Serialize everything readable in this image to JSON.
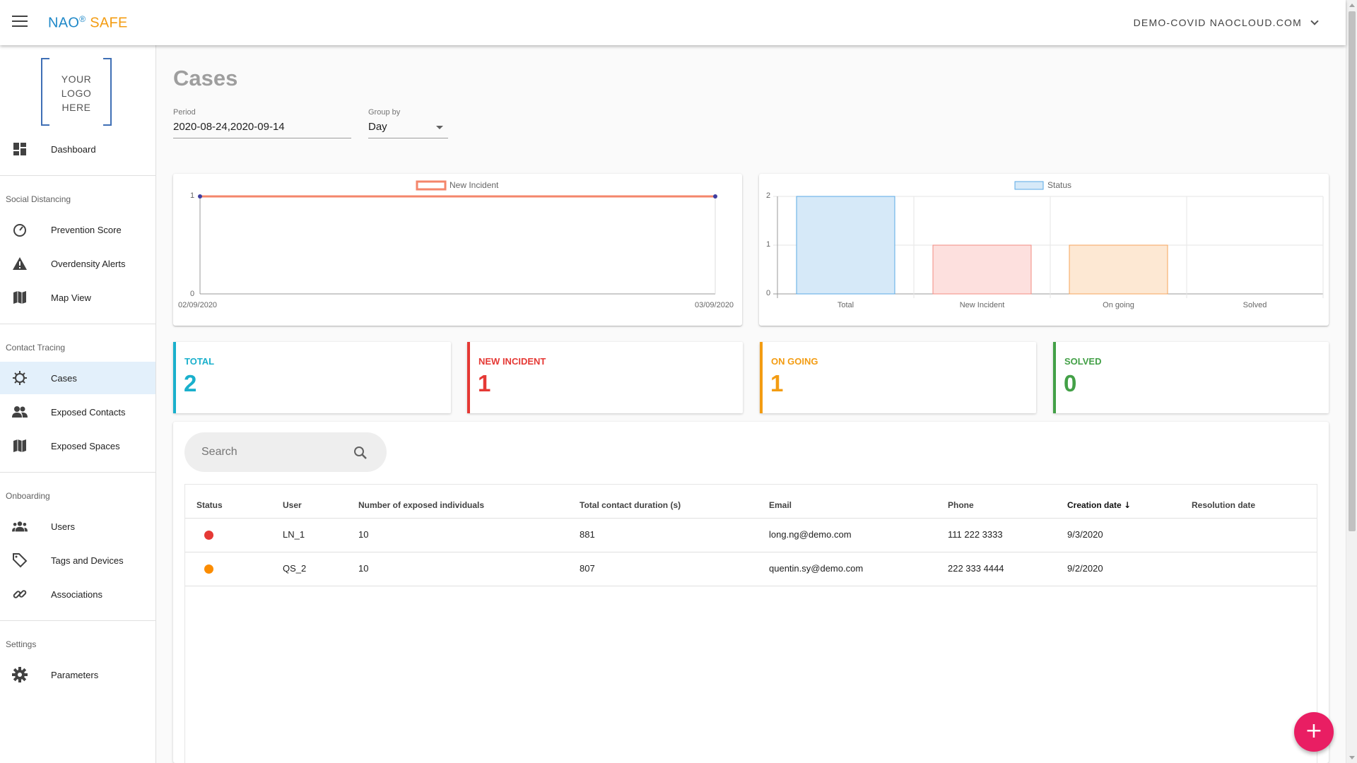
{
  "header": {
    "brand_nao": "NAO",
    "brand_reg": "®",
    "brand_safe": "SAFE",
    "account": "DEMO-COVID NAOCLOUD.COM"
  },
  "sidebar": {
    "logo_lines": [
      "YOUR",
      "LOGO",
      "HERE"
    ],
    "dashboard": "Dashboard",
    "sections": {
      "social_distancing": "Social Distancing",
      "contact_tracing": "Contact Tracing",
      "onboarding": "Onboarding",
      "settings": "Settings"
    },
    "items": {
      "prevention_score": "Prevention Score",
      "overdensity_alerts": "Overdensity Alerts",
      "map_view": "Map View",
      "cases": "Cases",
      "exposed_contacts": "Exposed Contacts",
      "exposed_spaces": "Exposed Spaces",
      "users": "Users",
      "tags_devices": "Tags and Devices",
      "associations": "Associations",
      "parameters": "Parameters"
    }
  },
  "main": {
    "title": "Cases",
    "period_label": "Period",
    "period_value": "2020-08-24,2020-09-14",
    "groupby_label": "Group by",
    "groupby_value": "Day"
  },
  "chart_data": [
    {
      "type": "line",
      "legend": [
        "New Incident"
      ],
      "x": [
        "02/09/2020",
        "03/09/2020"
      ],
      "series": [
        {
          "name": "New Incident",
          "values": [
            1,
            1
          ]
        }
      ],
      "y_ticks": [
        "0",
        "1"
      ],
      "ylim": [
        0,
        1
      ],
      "color": "#f4866b"
    },
    {
      "type": "bar",
      "legend": [
        "Status"
      ],
      "categories": [
        "Total",
        "New Incident",
        "On going",
        "Solved"
      ],
      "values": [
        2,
        1,
        1,
        0
      ],
      "y_ticks": [
        "0",
        "1",
        "2"
      ],
      "ylim": [
        0,
        2
      ],
      "fills": [
        "#d6e9f8",
        "#fde0de",
        "#fde8d3",
        "#e8f5e9"
      ],
      "strokes": [
        "#5aa9e6",
        "#f28b82",
        "#f6a55c",
        "#81c784"
      ]
    }
  ],
  "stats": [
    {
      "label": "TOTAL",
      "value": "2",
      "color": "#1ab0cc"
    },
    {
      "label": "NEW INCIDENT",
      "value": "1",
      "color": "#e53935"
    },
    {
      "label": "ON GOING",
      "value": "1",
      "color": "#f39c12"
    },
    {
      "label": "SOLVED",
      "value": "0",
      "color": "#43a047"
    }
  ],
  "table": {
    "search_placeholder": "Search",
    "columns": [
      "Status",
      "User",
      "Number of exposed individuals",
      "Total contact duration (s)",
      "Email",
      "Phone",
      "Creation date",
      "Resolution date"
    ],
    "sort_arrow": "↓",
    "rows": [
      {
        "status_color": "#e53935",
        "user": "LN_1",
        "exposed": "10",
        "duration": "881",
        "email": "long.ng@demo.com",
        "phone": "111 222 3333",
        "created": "9/3/2020",
        "resolved": ""
      },
      {
        "status_color": "#fb8c00",
        "user": "QS_2",
        "exposed": "10",
        "duration": "807",
        "email": "quentin.sy@demo.com",
        "phone": "222 333 4444",
        "created": "9/2/2020",
        "resolved": ""
      }
    ]
  },
  "fab": {
    "label": "+"
  }
}
